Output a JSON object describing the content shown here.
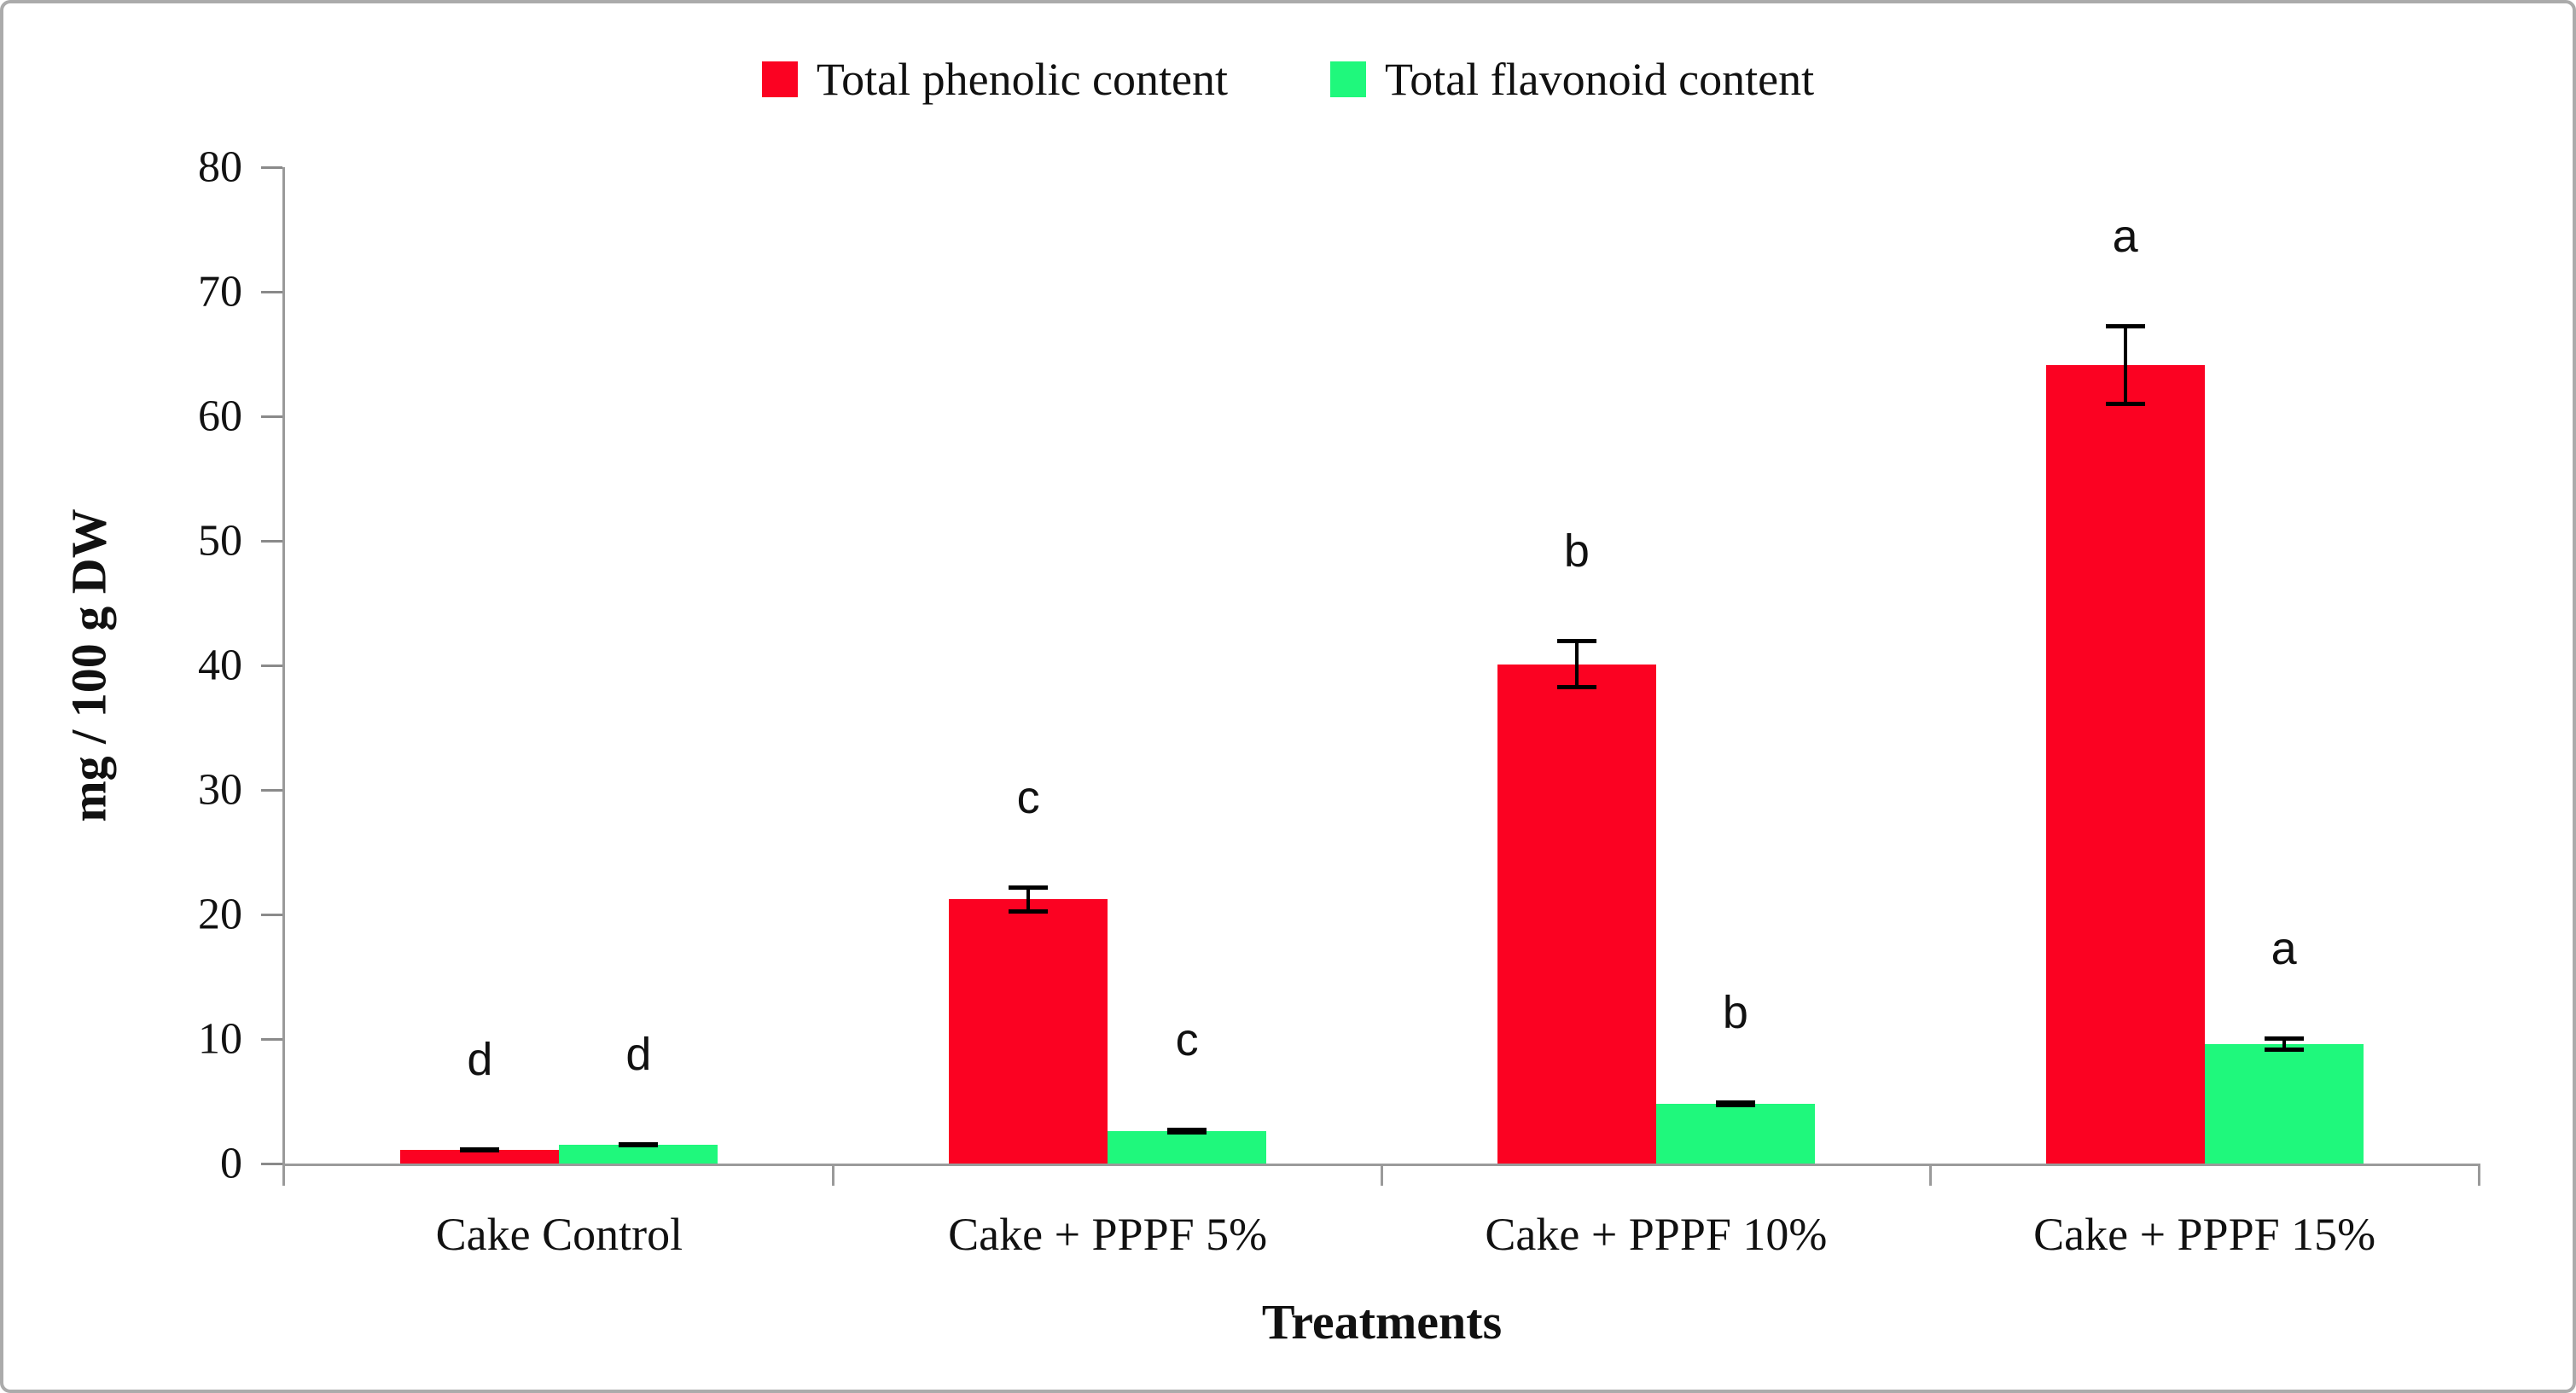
{
  "figure": {
    "kind": "scientific bar chart with error bars and significance letters",
    "background": "#ffffff",
    "border_color": "#ababab"
  },
  "axes": {
    "x_title": "Treatments",
    "y_title": "mg / 100 g DW",
    "axis_line_color": "#9a9a9a"
  },
  "chart_data": {
    "type": "bar",
    "title": "",
    "xlabel": "Treatments",
    "ylabel": "mg / 100 g DW",
    "ylim": [
      0,
      80
    ],
    "ytick_step": 10,
    "yticks": [
      0,
      10,
      20,
      30,
      40,
      50,
      60,
      70,
      80
    ],
    "grid": false,
    "legend_position": "top-center",
    "categories": [
      "Cake Control",
      "Cake + PPPF 5%",
      "Cake + PPPF 10%",
      "Cake + PPPF 15%"
    ],
    "series": [
      {
        "name": "Total phenolic content",
        "color": "#fb0222",
        "values": [
          1.1,
          21.2,
          40.1,
          64.1
        ],
        "errors": [
          0.2,
          1.1,
          2.0,
          3.3
        ],
        "letters": [
          "d",
          "c",
          "b",
          "a"
        ]
      },
      {
        "name": "Total flavonoid content",
        "color": "#1ff87c",
        "values": [
          1.5,
          2.6,
          4.8,
          9.6
        ],
        "errors": [
          0.2,
          0.3,
          0.3,
          0.6
        ],
        "letters": [
          "d",
          "c",
          "b",
          "a"
        ]
      }
    ]
  }
}
